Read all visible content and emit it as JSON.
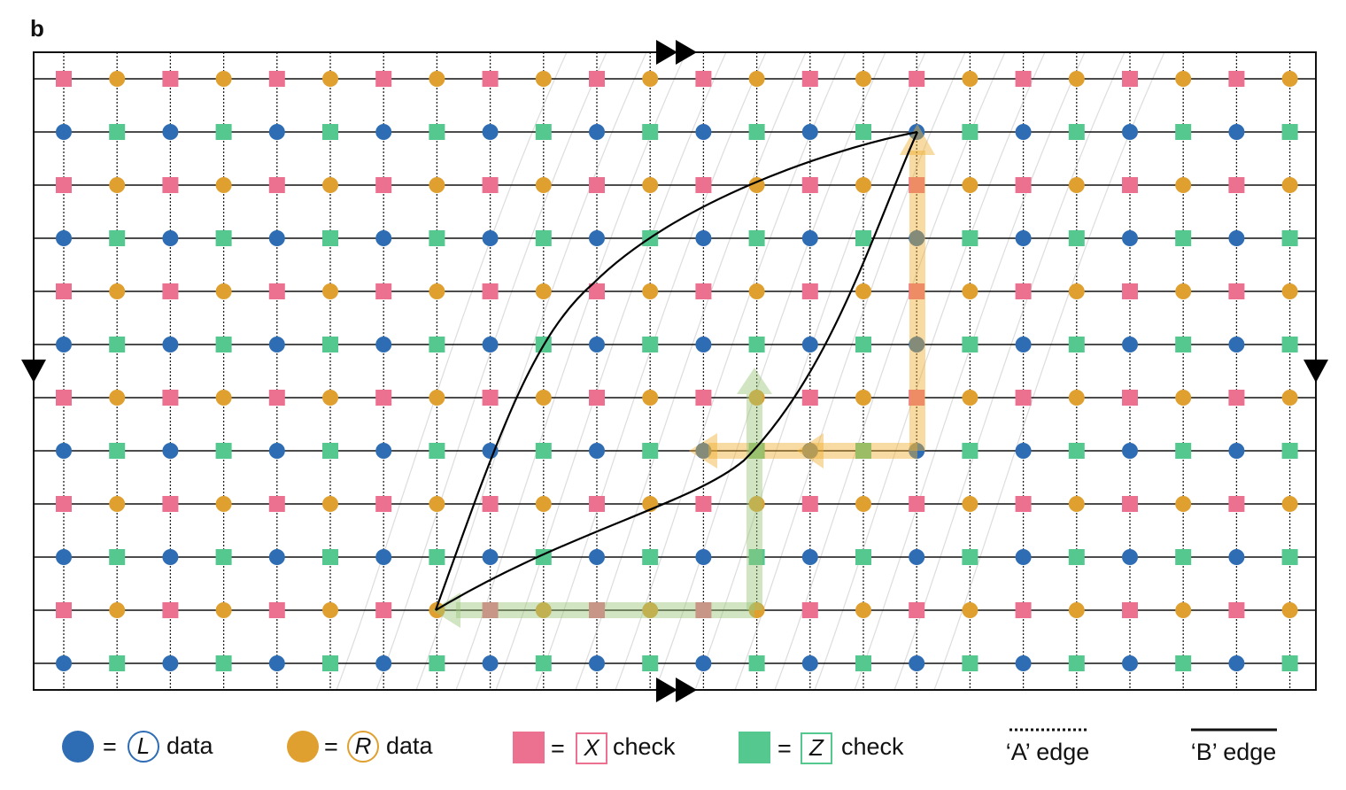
{
  "panel_label": "b",
  "equals": "=",
  "legend": [
    {
      "symbol": "L",
      "text": "data"
    },
    {
      "symbol": "R",
      "text": "data"
    },
    {
      "symbol": "X",
      "text": "check"
    },
    {
      "symbol": "Z",
      "text": "check"
    }
  ],
  "edges": [
    {
      "label": "‘A’ edge"
    },
    {
      "label": "‘B’ edge"
    }
  ]
}
